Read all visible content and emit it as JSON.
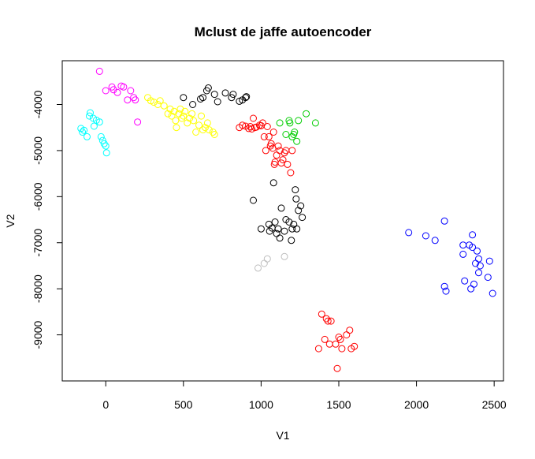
{
  "chart_data": {
    "type": "scatter",
    "title": "Mclust de jaffe autoencoder",
    "xlabel": "V1",
    "ylabel": "V2",
    "xlim": [
      -280,
      2560
    ],
    "ylim": [
      -10000,
      -3050
    ],
    "x_ticks": [
      0,
      500,
      1000,
      1500,
      2000,
      2500
    ],
    "y_ticks": [
      -4000,
      -5000,
      -6000,
      -7000,
      -8000,
      -9000
    ],
    "marker": "open-circle",
    "grid": false,
    "legend": "none",
    "series": [
      {
        "color": "#00ffff",
        "points": [
          [
            -160,
            -4520
          ],
          [
            -150,
            -4600
          ],
          [
            -140,
            -4560
          ],
          [
            -100,
            -4180
          ],
          [
            -105,
            -4250
          ],
          [
            -80,
            -4300
          ],
          [
            -75,
            -4470
          ],
          [
            -60,
            -4340
          ],
          [
            -40,
            -4380
          ],
          [
            -30,
            -4700
          ],
          [
            -20,
            -4780
          ],
          [
            -10,
            -4850
          ],
          [
            0,
            -4900
          ],
          [
            5,
            -5050
          ],
          [
            -120,
            -4700
          ]
        ]
      },
      {
        "color": "#ff00ff",
        "points": [
          [
            -40,
            -3280
          ],
          [
            0,
            -3700
          ],
          [
            40,
            -3620
          ],
          [
            50,
            -3680
          ],
          [
            75,
            -3740
          ],
          [
            100,
            -3600
          ],
          [
            115,
            -3620
          ],
          [
            140,
            -3900
          ],
          [
            160,
            -3700
          ],
          [
            180,
            -3850
          ],
          [
            190,
            -3900
          ],
          [
            205,
            -4380
          ]
        ]
      },
      {
        "color": "#ffff00",
        "points": [
          [
            270,
            -3850
          ],
          [
            290,
            -3920
          ],
          [
            310,
            -3950
          ],
          [
            335,
            -4000
          ],
          [
            350,
            -3920
          ],
          [
            375,
            -4030
          ],
          [
            400,
            -4200
          ],
          [
            415,
            -4100
          ],
          [
            425,
            -4250
          ],
          [
            440,
            -4150
          ],
          [
            450,
            -4350
          ],
          [
            455,
            -4500
          ],
          [
            470,
            -4200
          ],
          [
            480,
            -4100
          ],
          [
            490,
            -4300
          ],
          [
            500,
            -4250
          ],
          [
            510,
            -4150
          ],
          [
            525,
            -4400
          ],
          [
            540,
            -4300
          ],
          [
            555,
            -4200
          ],
          [
            565,
            -4350
          ],
          [
            580,
            -4600
          ],
          [
            600,
            -4450
          ],
          [
            615,
            -4250
          ],
          [
            625,
            -4550
          ],
          [
            640,
            -4500
          ],
          [
            655,
            -4400
          ],
          [
            665,
            -4550
          ],
          [
            690,
            -4600
          ],
          [
            700,
            -4650
          ]
        ]
      },
      {
        "color": "#000000",
        "points": [
          [
            500,
            -3850
          ],
          [
            560,
            -4000
          ],
          [
            610,
            -3880
          ],
          [
            625,
            -3850
          ],
          [
            650,
            -3700
          ],
          [
            660,
            -3640
          ],
          [
            700,
            -3780
          ],
          [
            720,
            -3940
          ],
          [
            770,
            -3750
          ],
          [
            810,
            -3850
          ],
          [
            820,
            -3780
          ],
          [
            860,
            -3930
          ],
          [
            880,
            -3900
          ],
          [
            900,
            -3850
          ],
          [
            905,
            -3830
          ],
          [
            950,
            -6080
          ],
          [
            1000,
            -6700
          ],
          [
            1050,
            -6600
          ],
          [
            1055,
            -6750
          ],
          [
            1070,
            -6680
          ],
          [
            1080,
            -5700
          ],
          [
            1090,
            -6550
          ],
          [
            1100,
            -6800
          ],
          [
            1110,
            -6700
          ],
          [
            1120,
            -6900
          ],
          [
            1130,
            -6250
          ],
          [
            1150,
            -6750
          ],
          [
            1160,
            -6500
          ],
          [
            1180,
            -6550
          ],
          [
            1195,
            -6950
          ],
          [
            1200,
            -6700
          ],
          [
            1210,
            -6600
          ],
          [
            1220,
            -5850
          ],
          [
            1225,
            -6050
          ],
          [
            1230,
            -6700
          ],
          [
            1240,
            -6300
          ],
          [
            1255,
            -6200
          ],
          [
            1265,
            -6450
          ]
        ]
      },
      {
        "color": "#ff0000",
        "points": [
          [
            860,
            -4500
          ],
          [
            880,
            -4450
          ],
          [
            900,
            -4470
          ],
          [
            920,
            -4520
          ],
          [
            930,
            -4480
          ],
          [
            940,
            -4530
          ],
          [
            950,
            -4300
          ],
          [
            960,
            -4500
          ],
          [
            970,
            -4490
          ],
          [
            990,
            -4450
          ],
          [
            1000,
            -4460
          ],
          [
            1010,
            -4400
          ],
          [
            1020,
            -4700
          ],
          [
            1030,
            -5000
          ],
          [
            1040,
            -4480
          ],
          [
            1050,
            -4700
          ],
          [
            1060,
            -4900
          ],
          [
            1065,
            -4850
          ],
          [
            1075,
            -4950
          ],
          [
            1080,
            -4600
          ],
          [
            1085,
            -5300
          ],
          [
            1090,
            -5250
          ],
          [
            1100,
            -5100
          ],
          [
            1110,
            -4900
          ],
          [
            1120,
            -5000
          ],
          [
            1130,
            -5270
          ],
          [
            1140,
            -5200
          ],
          [
            1150,
            -5050
          ],
          [
            1160,
            -5000
          ],
          [
            1170,
            -5300
          ],
          [
            1190,
            -5480
          ],
          [
            1200,
            -5000
          ],
          [
            1370,
            -9300
          ],
          [
            1390,
            -8550
          ],
          [
            1410,
            -9100
          ],
          [
            1420,
            -8650
          ],
          [
            1430,
            -8700
          ],
          [
            1440,
            -9200
          ],
          [
            1450,
            -8700
          ],
          [
            1480,
            -9200
          ],
          [
            1490,
            -9730
          ],
          [
            1500,
            -9050
          ],
          [
            1510,
            -9100
          ],
          [
            1520,
            -9300
          ],
          [
            1550,
            -9000
          ],
          [
            1570,
            -8900
          ],
          [
            1580,
            -9300
          ],
          [
            1600,
            -9250
          ]
        ]
      },
      {
        "color": "#00cd00",
        "points": [
          [
            1120,
            -4400
          ],
          [
            1160,
            -4650
          ],
          [
            1180,
            -4350
          ],
          [
            1185,
            -4400
          ],
          [
            1200,
            -4700
          ],
          [
            1210,
            -4650
          ],
          [
            1215,
            -4600
          ],
          [
            1230,
            -4800
          ],
          [
            1240,
            -4350
          ],
          [
            1290,
            -4200
          ],
          [
            1350,
            -4400
          ]
        ]
      },
      {
        "color": "#bebebe",
        "points": [
          [
            980,
            -7550
          ],
          [
            1020,
            -7450
          ],
          [
            1040,
            -7350
          ],
          [
            1150,
            -7300
          ]
        ]
      },
      {
        "color": "#0000ff",
        "points": [
          [
            1950,
            -6780
          ],
          [
            2060,
            -6850
          ],
          [
            2120,
            -6950
          ],
          [
            2180,
            -6530
          ],
          [
            2180,
            -7950
          ],
          [
            2190,
            -8050
          ],
          [
            2300,
            -7050
          ],
          [
            2300,
            -7250
          ],
          [
            2310,
            -7830
          ],
          [
            2340,
            -7050
          ],
          [
            2350,
            -8000
          ],
          [
            2360,
            -7100
          ],
          [
            2360,
            -6830
          ],
          [
            2370,
            -7900
          ],
          [
            2380,
            -7450
          ],
          [
            2390,
            -7180
          ],
          [
            2400,
            -7350
          ],
          [
            2400,
            -7650
          ],
          [
            2410,
            -7500
          ],
          [
            2460,
            -7750
          ],
          [
            2470,
            -7400
          ],
          [
            2490,
            -8100
          ]
        ]
      }
    ]
  }
}
